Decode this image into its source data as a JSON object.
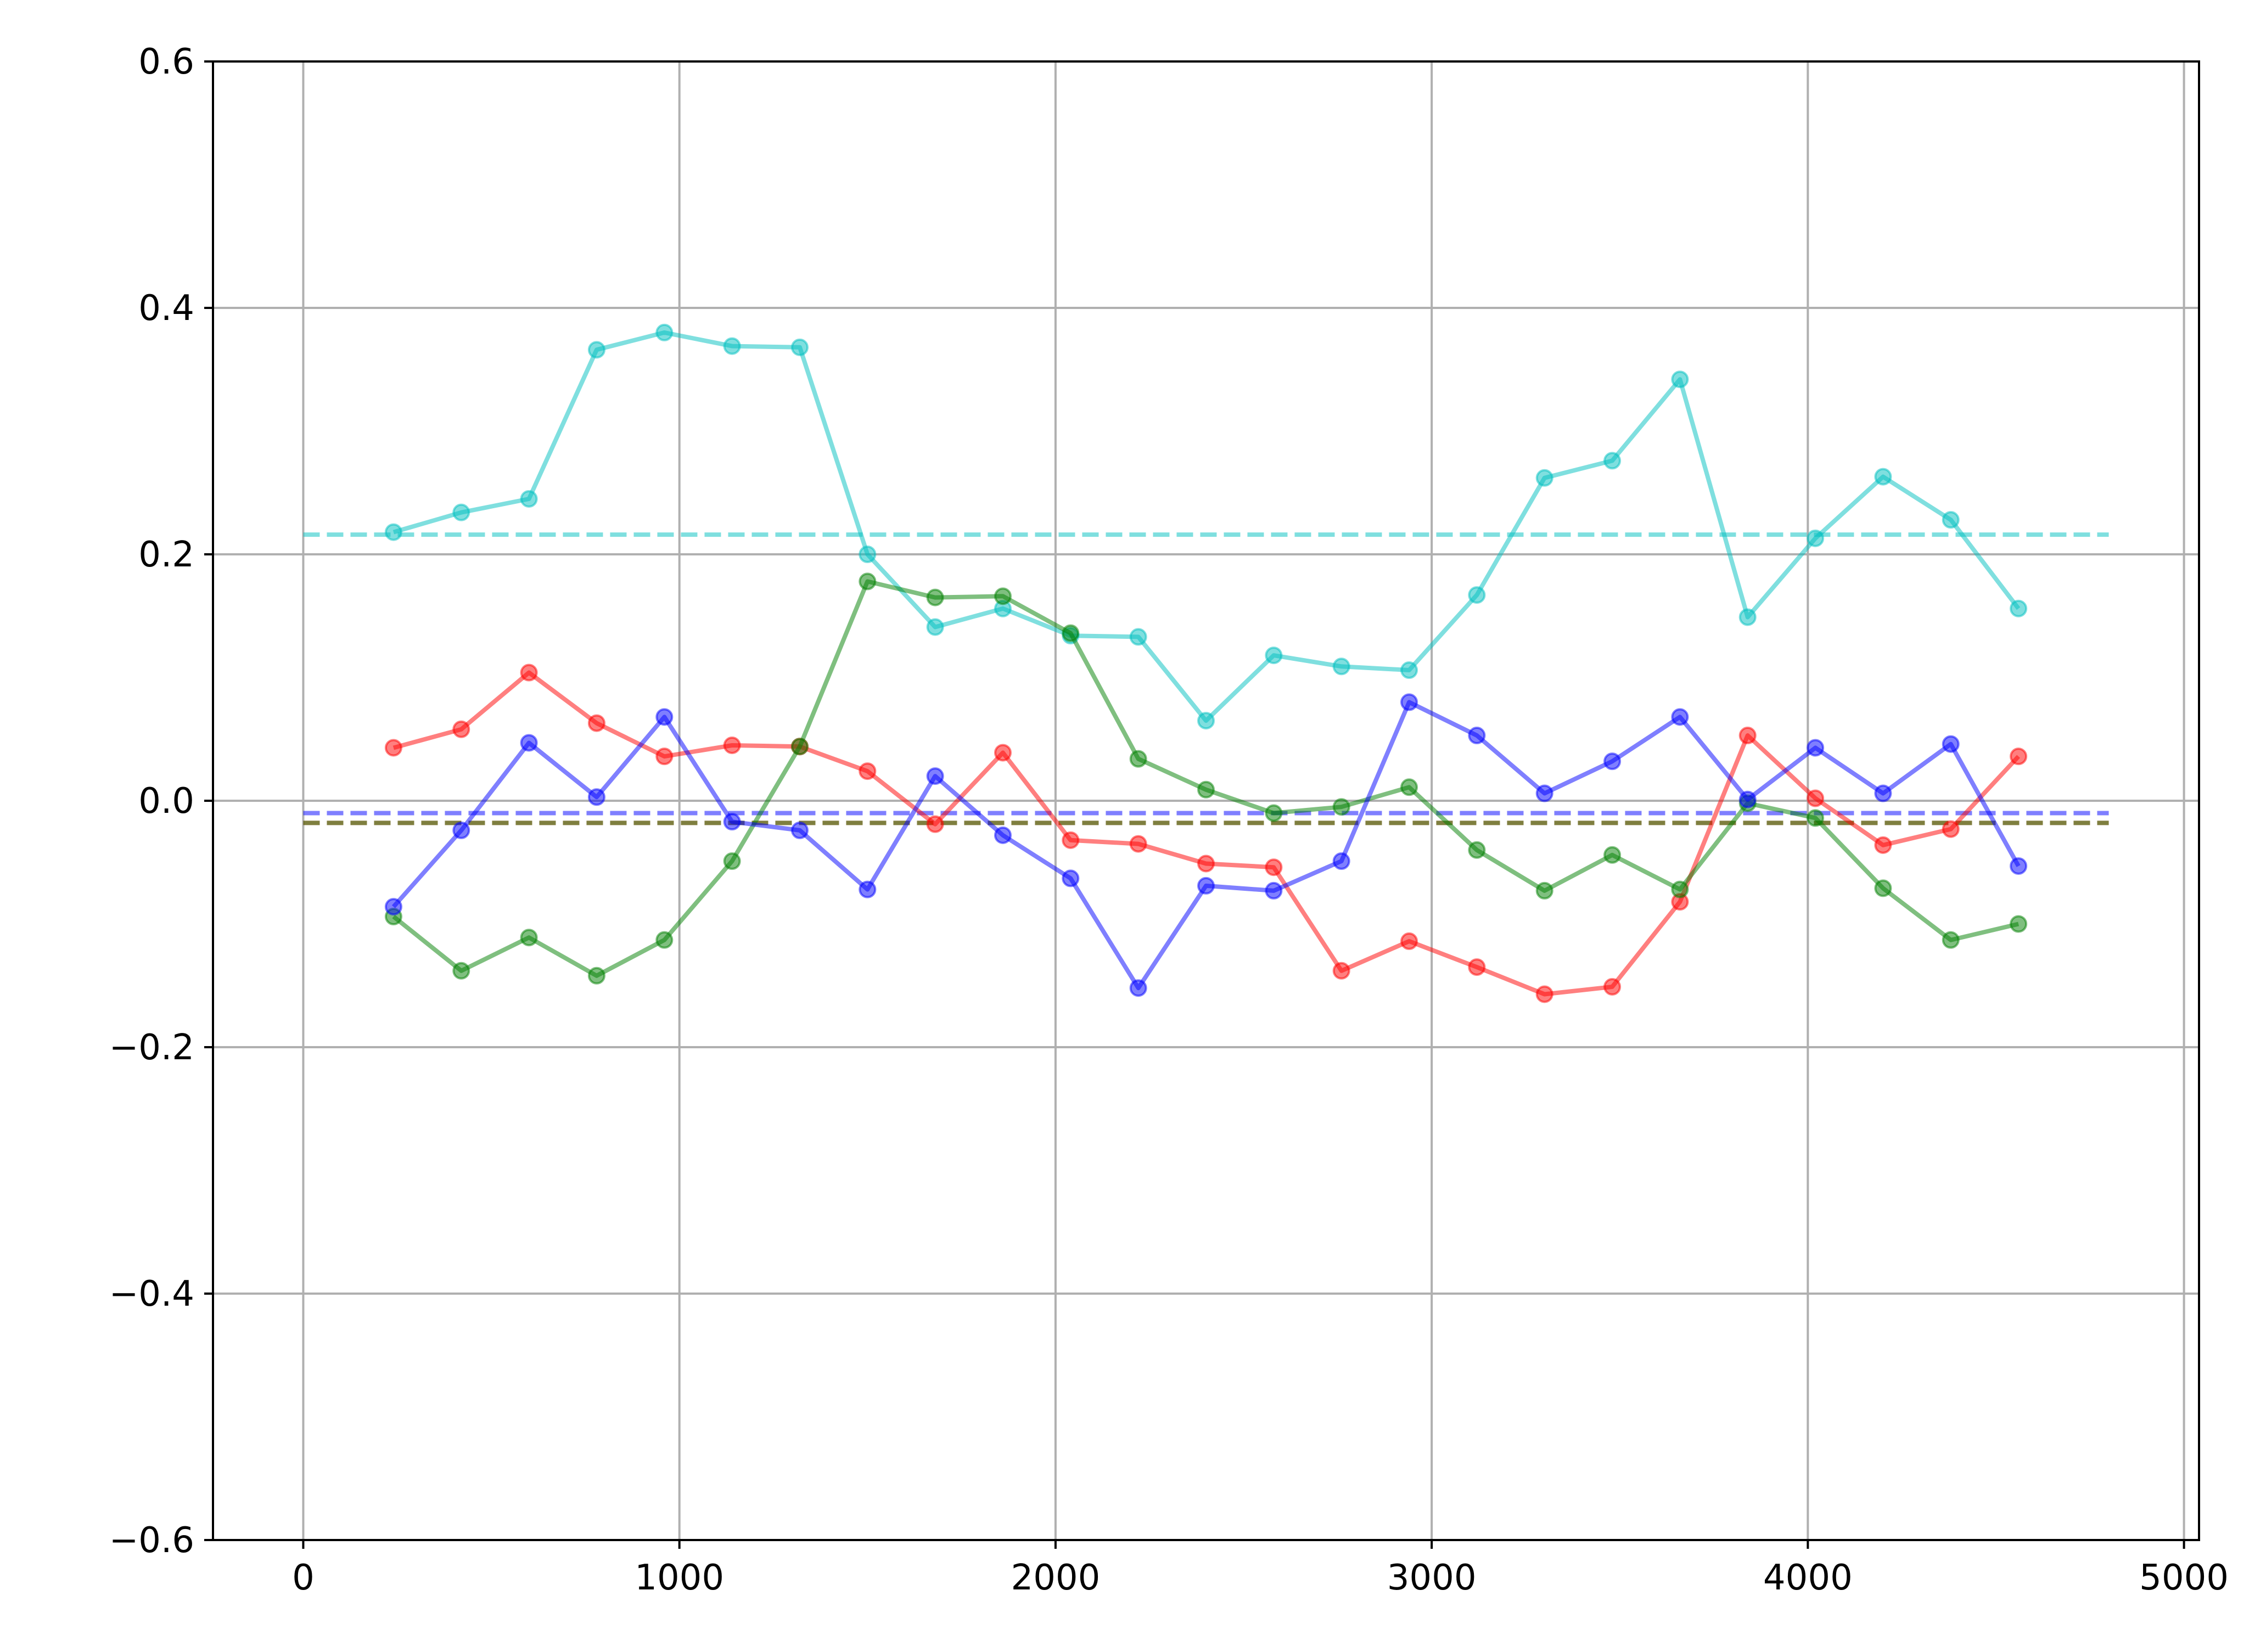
{
  "chart_data": {
    "type": "line",
    "title": "",
    "xlabel": "",
    "ylabel": "",
    "xlim": [
      -240,
      5040
    ],
    "ylim": [
      -0.6,
      0.6
    ],
    "grid": true,
    "legend": "none",
    "x_ticks": [
      0,
      1000,
      2000,
      3000,
      4000,
      5000
    ],
    "x_tick_labels": [
      "0",
      "1000",
      "2000",
      "3000",
      "4000",
      "5000"
    ],
    "y_ticks": [
      -0.6,
      -0.4,
      -0.2,
      0.0,
      0.2,
      0.4,
      0.6
    ],
    "y_tick_labels": [
      "−0.6",
      "−0.4",
      "−0.2",
      "0.0",
      "0.2",
      "0.4",
      "0.6"
    ],
    "x": [
      240,
      420,
      600,
      780,
      960,
      1140,
      1320,
      1500,
      1680,
      1860,
      2040,
      2220,
      2400,
      2580,
      2760,
      2940,
      3120,
      3300,
      3480,
      3660,
      3840,
      4020,
      4200,
      4380,
      4560
    ],
    "series": [
      {
        "color": "#00bfbf",
        "values": [
          0.218,
          0.234,
          0.245,
          0.366,
          0.38,
          0.369,
          0.368,
          0.2,
          0.141,
          0.156,
          0.134,
          0.133,
          0.065,
          0.118,
          0.109,
          0.106,
          0.167,
          0.262,
          0.276,
          0.342,
          0.149,
          0.213,
          0.263,
          0.228,
          0.156
        ],
        "mean": 0.216
      },
      {
        "color": "#ff0000",
        "values": [
          0.043,
          0.058,
          0.104,
          0.063,
          0.036,
          0.045,
          0.044,
          0.024,
          -0.019,
          0.039,
          -0.032,
          -0.035,
          -0.051,
          -0.054,
          -0.138,
          -0.114,
          -0.135,
          -0.157,
          -0.151,
          -0.082,
          0.053,
          0.002,
          -0.036,
          -0.023,
          0.036
        ],
        "mean": -0.018
      },
      {
        "color": "#008000",
        "values": [
          -0.094,
          -0.138,
          -0.111,
          -0.142,
          -0.113,
          -0.049,
          0.044,
          0.178,
          0.165,
          0.166,
          0.136,
          0.034,
          0.009,
          -0.01,
          -0.005,
          0.011,
          -0.04,
          -0.073,
          -0.044,
          -0.072,
          -0.002,
          -0.014,
          -0.071,
          -0.113,
          -0.1
        ],
        "mean": -0.018
      },
      {
        "color": "#0000ff",
        "values": [
          -0.086,
          -0.024,
          0.047,
          0.003,
          0.068,
          -0.017,
          -0.024,
          -0.072,
          0.02,
          -0.028,
          -0.063,
          -0.152,
          -0.069,
          -0.073,
          -0.049,
          0.08,
          0.053,
          0.006,
          0.032,
          0.068,
          0.001,
          0.043,
          0.006,
          0.046,
          -0.053
        ],
        "mean": -0.01
      }
    ],
    "mean_line_range": [
      0,
      4800
    ]
  }
}
